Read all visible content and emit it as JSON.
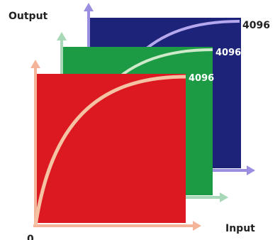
{
  "labels": {
    "output": "Output",
    "input": "Input",
    "origin": "0",
    "blue_max": "4096",
    "green_max": "4096",
    "red_max": "4096"
  },
  "colors": {
    "blue_panel": "#1c2378",
    "blue_arrow": "#9a8ee0",
    "blue_curve": "#b6a8ee",
    "green_panel": "#1d9b44",
    "green_arrow": "#a8d8b8",
    "green_curve": "#cfeacb",
    "red_panel": "#dc1920",
    "red_arrow": "#f4b49a",
    "red_curve": "#f6c2a4"
  }
}
